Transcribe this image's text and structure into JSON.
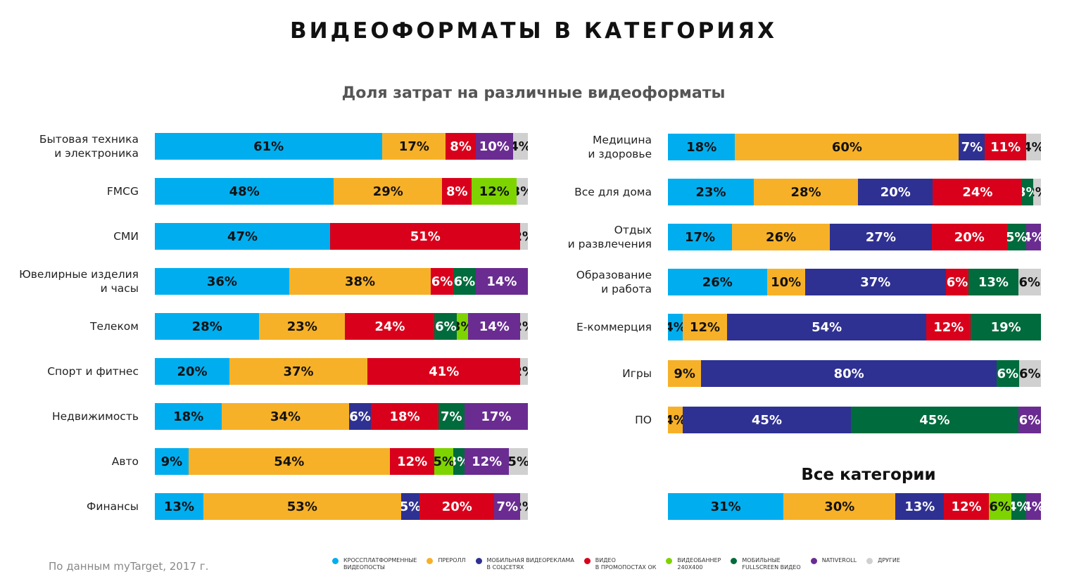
{
  "title": "ВИДЕОФОРМАТЫ В КАТЕГОРИЯХ",
  "source": "По данным myTarget,  2017 г.",
  "chart_data": {
    "type": "bar",
    "stacked": true,
    "orientation": "horizontal",
    "subtitle": "Доля затрат на различные видеоформаты",
    "formats": [
      {
        "key": "cross",
        "name": "Кроссплатформенные\nвидеопосты",
        "color": "#00aeef"
      },
      {
        "key": "preroll",
        "name": "Преролл",
        "color": "#f7b128"
      },
      {
        "key": "mobsoc",
        "name": "Мобильная видеореклама\nв соцсетях",
        "color": "#2e3192"
      },
      {
        "key": "ok",
        "name": "Видео\nв промопостах ОК",
        "color": "#d9001b"
      },
      {
        "key": "banner",
        "name": "Видеобаннер\n240х400",
        "color": "#7ed400"
      },
      {
        "key": "fullscreen",
        "name": "Мобильные\nfullscreen видео",
        "color": "#006b3c"
      },
      {
        "key": "nativeroll",
        "name": "Nativeroll",
        "color": "#6a2c91"
      },
      {
        "key": "other",
        "name": "Другие",
        "color": "#d0d0d0"
      }
    ],
    "left": [
      {
        "category": "Бытовая техника\nи электроника",
        "segments": [
          [
            "cross",
            61
          ],
          [
            "preroll",
            17
          ],
          [
            "ok",
            8
          ],
          [
            "nativeroll",
            10
          ],
          [
            "other",
            4
          ]
        ]
      },
      {
        "category": "FMCG",
        "segments": [
          [
            "cross",
            48
          ],
          [
            "preroll",
            29
          ],
          [
            "ok",
            8
          ],
          [
            "banner",
            12
          ],
          [
            "other",
            3
          ]
        ]
      },
      {
        "category": "СМИ",
        "segments": [
          [
            "cross",
            47
          ],
          [
            "ok",
            51
          ],
          [
            "other",
            2
          ]
        ]
      },
      {
        "category": "Ювелирные изделия\nи часы",
        "segments": [
          [
            "cross",
            36
          ],
          [
            "preroll",
            38
          ],
          [
            "ok",
            6
          ],
          [
            "fullscreen",
            6
          ],
          [
            "nativeroll",
            14
          ]
        ]
      },
      {
        "category": "Телеком",
        "segments": [
          [
            "cross",
            28
          ],
          [
            "preroll",
            23
          ],
          [
            "ok",
            24
          ],
          [
            "fullscreen",
            6
          ],
          [
            "banner",
            3
          ],
          [
            "nativeroll",
            14
          ],
          [
            "other",
            2
          ]
        ]
      },
      {
        "category": "Спорт и фитнес",
        "segments": [
          [
            "cross",
            20
          ],
          [
            "preroll",
            37
          ],
          [
            "ok",
            41
          ],
          [
            "other",
            2
          ]
        ]
      },
      {
        "category": "Недвижимость",
        "segments": [
          [
            "cross",
            18
          ],
          [
            "preroll",
            34
          ],
          [
            "mobsoc",
            6
          ],
          [
            "ok",
            18
          ],
          [
            "fullscreen",
            7
          ],
          [
            "nativeroll",
            17
          ]
        ]
      },
      {
        "category": "Авто",
        "segments": [
          [
            "cross",
            9
          ],
          [
            "preroll",
            54
          ],
          [
            "ok",
            12
          ],
          [
            "banner",
            5
          ],
          [
            "fullscreen",
            3
          ],
          [
            "nativeroll",
            12
          ],
          [
            "other",
            5
          ]
        ]
      },
      {
        "category": "Финансы",
        "segments": [
          [
            "cross",
            13
          ],
          [
            "preroll",
            53
          ],
          [
            "mobsoc",
            5
          ],
          [
            "ok",
            20
          ],
          [
            "nativeroll",
            7
          ],
          [
            "other",
            2
          ]
        ]
      }
    ],
    "right": [
      {
        "category": "Медицина\nи здоровье",
        "segments": [
          [
            "cross",
            18
          ],
          [
            "preroll",
            60
          ],
          [
            "mobsoc",
            7
          ],
          [
            "ok",
            11
          ],
          [
            "other",
            4
          ]
        ]
      },
      {
        "category": "Все для дома",
        "segments": [
          [
            "cross",
            23
          ],
          [
            "preroll",
            28
          ],
          [
            "mobsoc",
            20
          ],
          [
            "ok",
            24
          ],
          [
            "fullscreen",
            3
          ],
          [
            "other",
            2
          ]
        ]
      },
      {
        "category": "Отдых\nи развлечения",
        "segments": [
          [
            "cross",
            17
          ],
          [
            "preroll",
            26
          ],
          [
            "mobsoc",
            27
          ],
          [
            "ok",
            20
          ],
          [
            "fullscreen",
            5
          ],
          [
            "nativeroll",
            4
          ]
        ]
      },
      {
        "category": "Образование\nи работа",
        "segments": [
          [
            "cross",
            26
          ],
          [
            "preroll",
            10
          ],
          [
            "mobsoc",
            37
          ],
          [
            "ok",
            6
          ],
          [
            "fullscreen",
            13
          ],
          [
            "other",
            6
          ]
        ]
      },
      {
        "category": "Е-коммерция",
        "segments": [
          [
            "cross",
            4
          ],
          [
            "preroll",
            12
          ],
          [
            "mobsoc",
            54
          ],
          [
            "ok",
            12
          ],
          [
            "fullscreen",
            19
          ]
        ]
      },
      {
        "category": "Игры",
        "segments": [
          [
            "preroll",
            9
          ],
          [
            "mobsoc",
            80
          ],
          [
            "fullscreen",
            6
          ],
          [
            "other",
            6
          ]
        ]
      },
      {
        "category": "ПО",
        "segments": [
          [
            "preroll",
            4
          ],
          [
            "mobsoc",
            45
          ],
          [
            "fullscreen",
            45
          ],
          [
            "nativeroll",
            6
          ]
        ]
      }
    ],
    "all": {
      "category": "Все категории",
      "segments": [
        [
          "cross",
          31
        ],
        [
          "preroll",
          30
        ],
        [
          "mobsoc",
          13
        ],
        [
          "ok",
          12
        ],
        [
          "banner",
          6
        ],
        [
          "fullscreen",
          4
        ],
        [
          "nativeroll",
          4
        ]
      ]
    }
  }
}
